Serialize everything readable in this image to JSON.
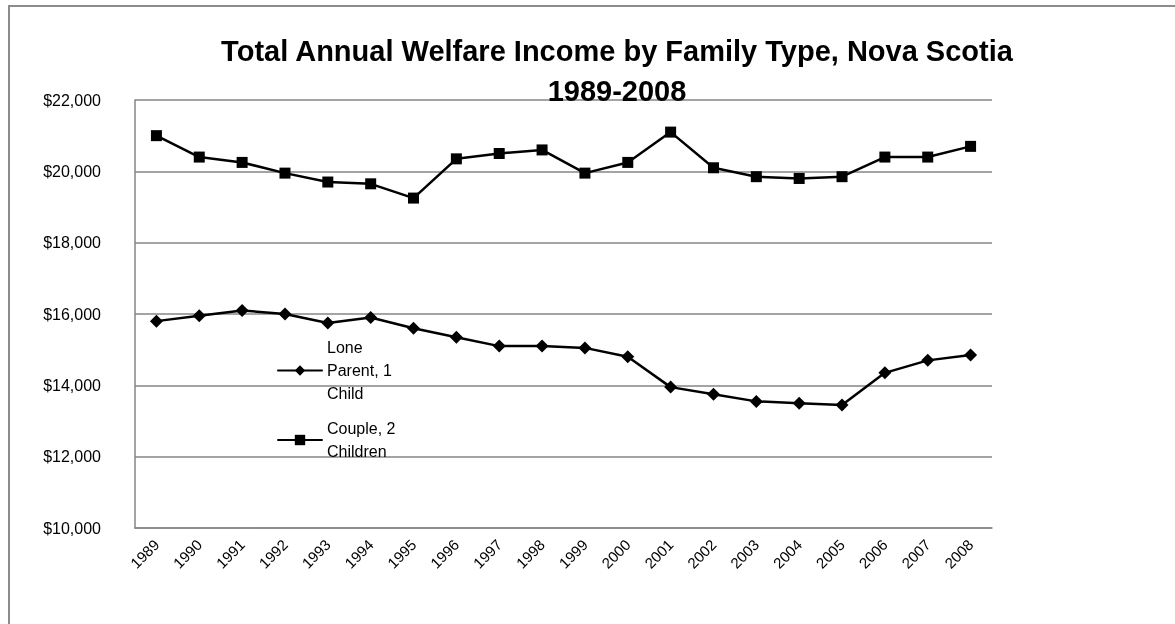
{
  "chart_data": {
    "type": "line",
    "title": "Total Annual Welfare Income by Family Type, Nova Scotia\n1989-2008",
    "categories": [
      "1989",
      "1990",
      "1991",
      "1992",
      "1993",
      "1994",
      "1995",
      "1996",
      "1997",
      "1998",
      "1999",
      "2000",
      "2001",
      "2002",
      "2003",
      "2004",
      "2005",
      "2006",
      "2007",
      "2008"
    ],
    "series": [
      {
        "name": "Lone Parent, 1 Child",
        "color": "#000000",
        "marker": "diamond",
        "values": [
          15800,
          15950,
          16100,
          16000,
          15750,
          15900,
          15600,
          15350,
          15100,
          15100,
          15050,
          14800,
          13950,
          13750,
          13550,
          13500,
          13450,
          14350,
          14700,
          14850
        ]
      },
      {
        "name": "Couple, 2 Children",
        "color": "#000000",
        "marker": "square",
        "values": [
          21000,
          20400,
          20250,
          19950,
          19700,
          19650,
          19250,
          20350,
          20500,
          20600,
          19950,
          20250,
          21100,
          20100,
          19850,
          19800,
          19850,
          20400,
          20400,
          20700
        ]
      }
    ],
    "ylim": [
      10000,
      22000
    ],
    "yticks": [
      {
        "value": 10000,
        "label": "$10,000"
      },
      {
        "value": 12000,
        "label": "$12,000"
      },
      {
        "value": 14000,
        "label": "$14,000"
      },
      {
        "value": 16000,
        "label": "$16,000"
      },
      {
        "value": 18000,
        "label": "$18,000"
      },
      {
        "value": 20000,
        "label": "$20,000"
      },
      {
        "value": 22000,
        "label": "$22,000"
      }
    ],
    "grid": "y",
    "legend": "left"
  }
}
